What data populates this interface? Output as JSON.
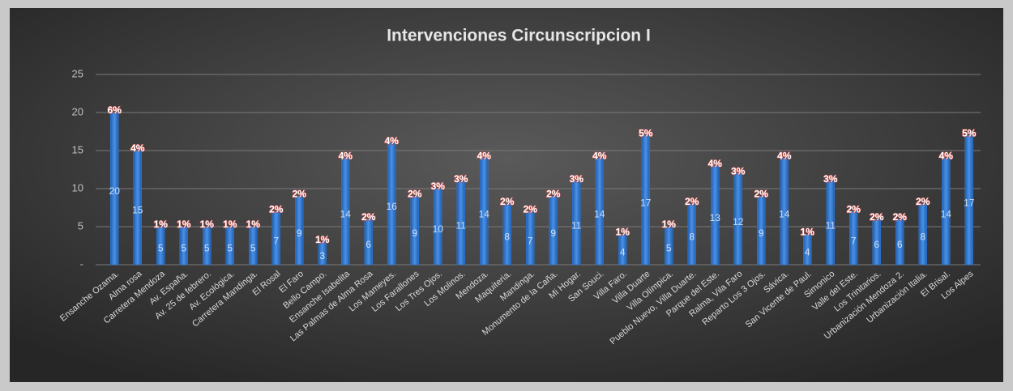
{
  "chart_data": {
    "type": "bar",
    "title": "Intervenciones Circunscripcion I",
    "categories": [
      "Ensanche Ozama.",
      "Alma rosa",
      "Carretera Mendoza",
      "Av. España.",
      "Av. 25 de febrero.",
      "Av. Ecológica.",
      "Carretera Mandinga.",
      "El Rosal",
      "El Faro",
      "Bello Campo.",
      "Ensanche Isabelita",
      "Las Palmas de Alma Rosa",
      "Los Mameyes.",
      "Los Farallones",
      "Los Tres Ojos.",
      "Los Molinos.",
      "Mendoza.",
      "Maquiteria.",
      "Mandinga.",
      "Monumento de la Caña.",
      "Mi Hogar.",
      "San Souci.",
      "Villa Faro.",
      "Villa Duarte",
      "Villa Olímpica.",
      "Pueblo Nuevo, Villa Duarte.",
      "Parque del Este.",
      "Ralma, Vila Faro",
      "Reparto Los 3 Ojos.",
      "Sávica.",
      "San Vicente de Paul.",
      "Simonico",
      "Valle del Este.",
      "Los Trinitarios.",
      "Urbanización Mendoza 2.",
      "Urbanización Italia.",
      "El Brisal.",
      "Los Alpes"
    ],
    "values": [
      20,
      15,
      5,
      5,
      5,
      5,
      5,
      7,
      9,
      3,
      14,
      6,
      16,
      9,
      10,
      11,
      14,
      8,
      7,
      9,
      11,
      14,
      4,
      17,
      5,
      8,
      13,
      12,
      9,
      14,
      4,
      11,
      7,
      6,
      6,
      8,
      14,
      17
    ],
    "percent_labels": [
      "6%",
      "4%",
      "1%",
      "1%",
      "1%",
      "1%",
      "1%",
      "2%",
      "2%",
      "1%",
      "4%",
      "2%",
      "4%",
      "2%",
      "3%",
      "3%",
      "4%",
      "2%",
      "2%",
      "2%",
      "3%",
      "4%",
      "1%",
      "5%",
      "1%",
      "2%",
      "4%",
      "3%",
      "2%",
      "4%",
      "1%",
      "3%",
      "2%",
      "2%",
      "2%",
      "2%",
      "4%",
      "5%"
    ],
    "color": "#2f78d2",
    "ylim": [
      0,
      25
    ],
    "yticks": [
      {
        "value": 0,
        "label": "-"
      },
      5,
      10,
      15,
      20,
      25
    ],
    "grid": true
  }
}
